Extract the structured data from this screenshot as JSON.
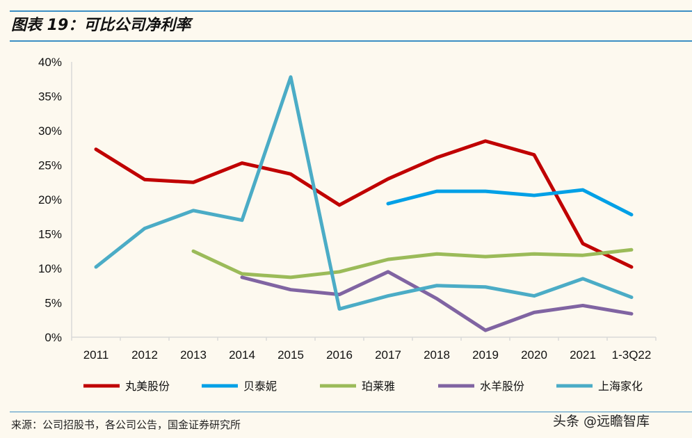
{
  "title": "图表 19：可比公司净利率",
  "source": "来源：公司招股书，各公司公告，国金证券研究所",
  "watermark": "头条 @远瞻智库",
  "chart_data": {
    "type": "line",
    "title": "可比公司净利率",
    "categories": [
      "2011",
      "2012",
      "2013",
      "2014",
      "2015",
      "2016",
      "2017",
      "2018",
      "2019",
      "2020",
      "2021",
      "1-3Q22"
    ],
    "ylim": [
      0,
      40
    ],
    "yticks": [
      "0%",
      "5%",
      "10%",
      "15%",
      "20%",
      "25%",
      "30%",
      "35%",
      "40%"
    ],
    "legend_position": "bottom",
    "series": [
      {
        "name": "丸美股份",
        "color": "#c00000",
        "values": [
          27.3,
          22.9,
          22.5,
          25.3,
          23.7,
          19.2,
          23.0,
          26.1,
          28.5,
          26.5,
          13.6,
          10.2
        ]
      },
      {
        "name": "贝泰妮",
        "color": "#00a0e6",
        "values": [
          null,
          null,
          null,
          null,
          null,
          null,
          19.4,
          21.2,
          21.2,
          20.6,
          21.4,
          17.8
        ]
      },
      {
        "name": "珀莱雅",
        "color": "#9bbb59",
        "values": [
          null,
          null,
          12.5,
          9.2,
          8.7,
          9.5,
          11.3,
          12.1,
          11.7,
          12.1,
          11.9,
          12.7
        ]
      },
      {
        "name": "水羊股份",
        "color": "#8064a2",
        "values": [
          null,
          null,
          null,
          8.7,
          6.9,
          6.2,
          9.5,
          5.6,
          1.0,
          3.6,
          4.6,
          3.4
        ]
      },
      {
        "name": "上海家化",
        "color": "#4bacc6",
        "values": [
          10.2,
          15.8,
          18.4,
          17.0,
          37.8,
          4.1,
          6.0,
          7.5,
          7.3,
          6.0,
          8.5,
          5.8
        ]
      }
    ]
  }
}
